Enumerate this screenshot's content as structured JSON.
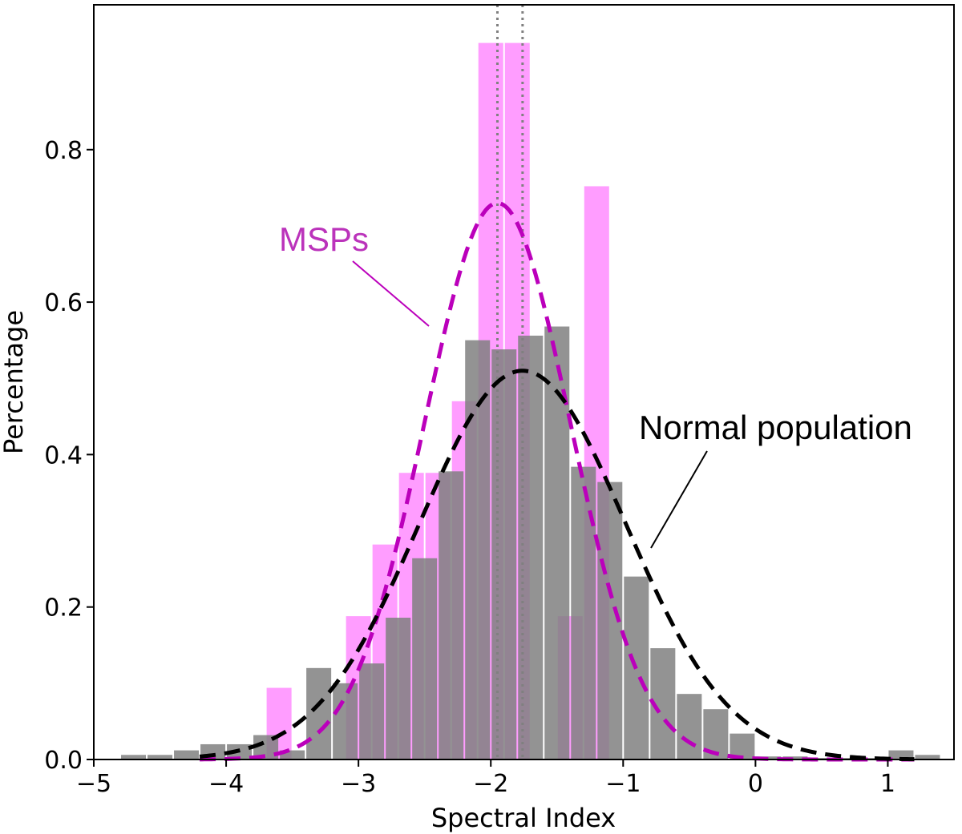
{
  "chart_data": {
    "type": "bar",
    "xlabel": "Spectral Index",
    "ylabel": "Percentage",
    "xlim": [
      -5,
      1.5
    ],
    "ylim": [
      0,
      0.99
    ],
    "xticks": [
      -5,
      -4,
      -3,
      -2,
      -1,
      0,
      1
    ],
    "xtick_labels": [
      "−5",
      "−4",
      "−3",
      "−2",
      "−1",
      "0",
      "1"
    ],
    "yticks": [
      0.0,
      0.2,
      0.4,
      0.6,
      0.8
    ],
    "ytick_labels": [
      "0.0",
      "0.2",
      "0.4",
      "0.6",
      "0.8"
    ],
    "bin_width": 0.2,
    "series": [
      {
        "name": "MSPs",
        "color": "#ff8cff",
        "opacity": 0.85,
        "bin_starts": [
          -3.7,
          -3.1,
          -2.9,
          -2.7,
          -2.5,
          -2.3,
          -2.1,
          -1.9,
          -1.7,
          -1.5,
          -1.3
        ],
        "values": [
          0.094,
          0.188,
          0.282,
          0.376,
          0.376,
          0.47,
          0.94,
          0.94,
          0.0,
          0.188,
          0.752
        ]
      },
      {
        "name": "Normal population",
        "color": "#808080",
        "opacity": 0.85,
        "bin_starts": [
          -4.8,
          -4.6,
          -4.4,
          -4.2,
          -4.0,
          -3.8,
          -3.6,
          -3.4,
          -3.2,
          -3.0,
          -2.8,
          -2.6,
          -2.4,
          -2.2,
          -2.0,
          -1.8,
          -1.6,
          -1.4,
          -1.2,
          -1.0,
          -0.8,
          -0.6,
          -0.4,
          -0.2,
          0.0,
          0.2,
          0.4,
          0.6,
          0.8,
          1.0,
          1.2
        ],
        "values": [
          0.006,
          0.006,
          0.012,
          0.02,
          0.02,
          0.032,
          0.012,
          0.12,
          0.1,
          0.126,
          0.186,
          0.264,
          0.378,
          0.55,
          0.538,
          0.556,
          0.568,
          0.384,
          0.364,
          0.24,
          0.146,
          0.086,
          0.066,
          0.034,
          0.004,
          0.004,
          0.002,
          0.002,
          0.002,
          0.012,
          0.006
        ]
      }
    ],
    "fits": [
      {
        "name": "MSPs fit",
        "mean": -1.95,
        "sigma": 0.55,
        "amplitude": 0.73,
        "color": "#bb00bb",
        "style": "dashed"
      },
      {
        "name": "Normal population fit",
        "mean": -1.76,
        "sigma": 0.78,
        "amplitude": 0.51,
        "color": "#000000",
        "style": "dashed"
      }
    ],
    "vlines": [
      {
        "x": -1.95,
        "color": "#808080",
        "style": "dotted"
      },
      {
        "x": -1.76,
        "color": "#808080",
        "style": "dotted"
      }
    ],
    "annotations": [
      {
        "text": "MSPs",
        "color": "#bb33bb",
        "pointer_to": "MSPs fit"
      },
      {
        "text": "Normal population",
        "color": "#000000",
        "pointer_to": "Normal population fit"
      }
    ]
  }
}
